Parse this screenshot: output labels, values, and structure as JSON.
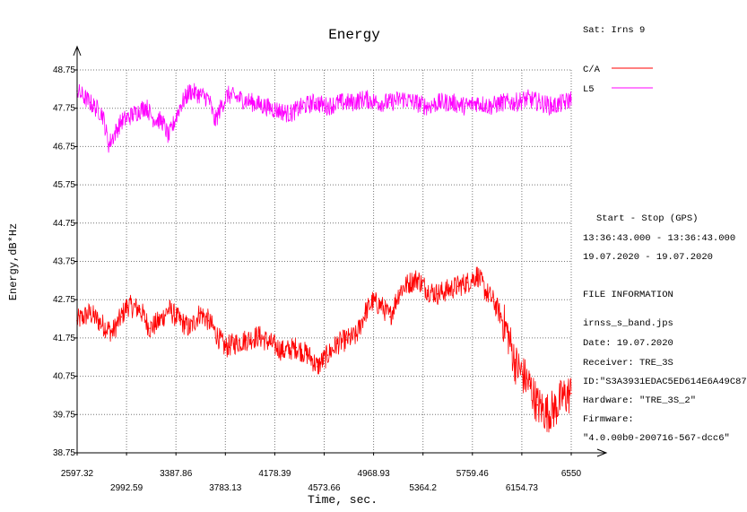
{
  "sat_label": "Sat: Irns   9",
  "legend": [
    {
      "label": "C/A",
      "color": "#ff0000"
    },
    {
      "label": "L5",
      "color": "#ff00ff"
    }
  ],
  "start_stop": {
    "header": "Start  -  Stop  (GPS)",
    "time": "13:36:43.000 - 13:36:43.000",
    "date": "19.07.2020 - 19.07.2020"
  },
  "file_info": {
    "header": "FILE INFORMATION",
    "filename": "irnss_s_band.jps",
    "date": "Date: 19.07.2020",
    "receiver": "Receiver: TRE_3S",
    "id": "ID:\"S3A3931EDAC5ED614E6A49C87",
    "hardware": "Hardware: \"TRE_3S_2\"",
    "firmware_label": "Firmware:",
    "firmware": "\"4.0.00b0-200716-567-dcc6\""
  },
  "chart_data": {
    "type": "line",
    "title": "Energy",
    "xlabel": "Time, sec.",
    "ylabel": "Energy,dB*Hz",
    "xlim": [
      2597.32,
      6550
    ],
    "ylim": [
      38.75,
      48.75
    ],
    "xticks_top": [
      "2597.32",
      "3387.86",
      "4178.39",
      "4968.93",
      "5759.46",
      "6550"
    ],
    "xticks_bottom": [
      "2992.59",
      "3783.13",
      "4573.66",
      "5364.2",
      "6154.73"
    ],
    "xtick_values": [
      2597.32,
      2992.59,
      3387.86,
      3783.13,
      4178.39,
      4573.66,
      4968.93,
      5364.2,
      5759.46,
      6154.73,
      6550
    ],
    "yticks": [
      "38.75",
      "39.75",
      "40.75",
      "41.75",
      "42.75",
      "43.75",
      "44.75",
      "45.75",
      "46.75",
      "47.75",
      "48.75"
    ],
    "grid": true,
    "series": [
      {
        "name": "C/A",
        "color": "#ff0000",
        "x": [
          2597.32,
          2700,
          2800,
          2880,
          2950,
          3000,
          3100,
          3180,
          3260,
          3330,
          3420,
          3500,
          3580,
          3650,
          3720,
          3780,
          3850,
          3950,
          4050,
          4150,
          4250,
          4350,
          4450,
          4520,
          4600,
          4680,
          4750,
          4830,
          4900,
          4960,
          5030,
          5100,
          5180,
          5260,
          5320,
          5400,
          5480,
          5560,
          5640,
          5720,
          5800,
          5860,
          5930,
          5990,
          6040,
          6100,
          6160,
          6220,
          6280,
          6350,
          6420,
          6480,
          6550
        ],
        "y": [
          42.2,
          42.4,
          42.1,
          41.9,
          42.3,
          42.6,
          42.5,
          42.0,
          42.2,
          42.5,
          42.2,
          42.0,
          42.4,
          42.2,
          41.8,
          41.5,
          41.6,
          41.7,
          41.8,
          41.6,
          41.4,
          41.5,
          41.3,
          41.0,
          41.3,
          41.6,
          41.7,
          41.8,
          42.4,
          42.7,
          42.6,
          42.3,
          43.0,
          43.2,
          43.3,
          43.0,
          42.9,
          43.0,
          43.1,
          43.2,
          43.4,
          43.0,
          42.7,
          42.3,
          41.9,
          41.1,
          40.8,
          40.5,
          40.0,
          39.8,
          39.9,
          40.2,
          40.3
        ]
      },
      {
        "name": "L5",
        "color": "#ff00ff",
        "x": [
          2597.32,
          2700,
          2800,
          2850,
          2950,
          3050,
          3150,
          3200,
          3280,
          3330,
          3420,
          3500,
          3580,
          3650,
          3700,
          3750,
          3800,
          3900,
          4000,
          4100,
          4200,
          4300,
          4400,
          4500,
          4600,
          4700,
          4800,
          4900,
          5000,
          5100,
          5200,
          5300,
          5400,
          5500,
          5600,
          5700,
          5800,
          5900,
          6000,
          6100,
          6200,
          6300,
          6400,
          6500,
          6550
        ],
        "y": [
          48.2,
          47.9,
          47.6,
          46.8,
          47.4,
          47.6,
          47.8,
          47.5,
          47.4,
          47.0,
          47.8,
          48.2,
          48.1,
          48.0,
          47.4,
          47.8,
          48.1,
          48.0,
          47.9,
          47.8,
          47.7,
          47.6,
          47.8,
          47.9,
          47.8,
          47.9,
          47.9,
          48.0,
          47.9,
          47.9,
          48.0,
          47.9,
          47.8,
          47.9,
          47.9,
          47.8,
          47.9,
          47.8,
          47.9,
          47.9,
          48.0,
          47.9,
          47.8,
          47.9,
          48.0
        ]
      }
    ]
  }
}
